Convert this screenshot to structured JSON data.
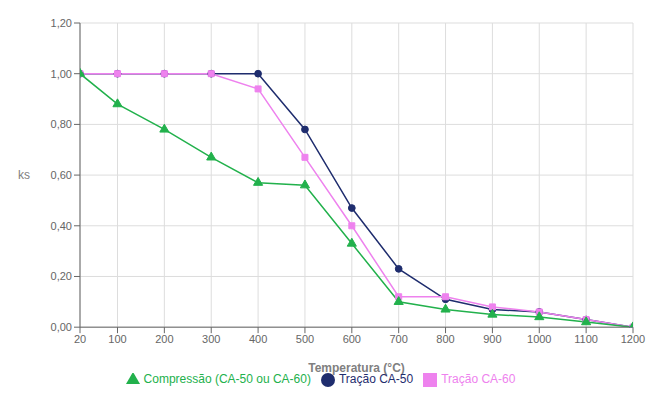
{
  "chart_data": {
    "type": "line",
    "title": "",
    "xlabel": "Temperatura (°C)",
    "ylabel": "ks",
    "x": [
      20,
      100,
      200,
      300,
      400,
      500,
      600,
      700,
      800,
      900,
      1000,
      1100,
      1200
    ],
    "xlim": [
      20,
      1200
    ],
    "ylim": [
      0.0,
      1.2
    ],
    "xticks": [
      20,
      100,
      200,
      300,
      400,
      500,
      600,
      700,
      800,
      900,
      1000,
      1100,
      1200
    ],
    "yticks": [
      {
        "value": 0.0,
        "label": "0,00"
      },
      {
        "value": 0.2,
        "label": "0,20"
      },
      {
        "value": 0.4,
        "label": "0,40"
      },
      {
        "value": 0.6,
        "label": "0,60"
      },
      {
        "value": 0.8,
        "label": "0,80"
      },
      {
        "value": 1.0,
        "label": "1,00"
      },
      {
        "value": 1.2,
        "label": "1,20"
      }
    ],
    "grid": true,
    "legend": "bottom",
    "series": [
      {
        "name": "Tração CA-50",
        "color": "#1f2d6e",
        "marker": "circle",
        "values": [
          1.0,
          1.0,
          1.0,
          1.0,
          1.0,
          0.78,
          0.47,
          0.23,
          0.11,
          0.07,
          0.06,
          0.03,
          0.0
        ]
      },
      {
        "name": "Tração CA-60",
        "color": "#ee82ee",
        "marker": "square",
        "values": [
          1.0,
          1.0,
          1.0,
          1.0,
          0.94,
          0.67,
          0.4,
          0.12,
          0.12,
          0.08,
          0.06,
          0.03,
          0.0
        ]
      },
      {
        "name": "Compressão (CA-50 ou CA-60)",
        "color": "#22b14c",
        "marker": "triangle",
        "values": [
          1.0,
          0.88,
          0.78,
          0.67,
          0.57,
          0.56,
          0.33,
          0.1,
          0.07,
          0.05,
          0.04,
          0.02,
          0.0
        ]
      }
    ]
  }
}
